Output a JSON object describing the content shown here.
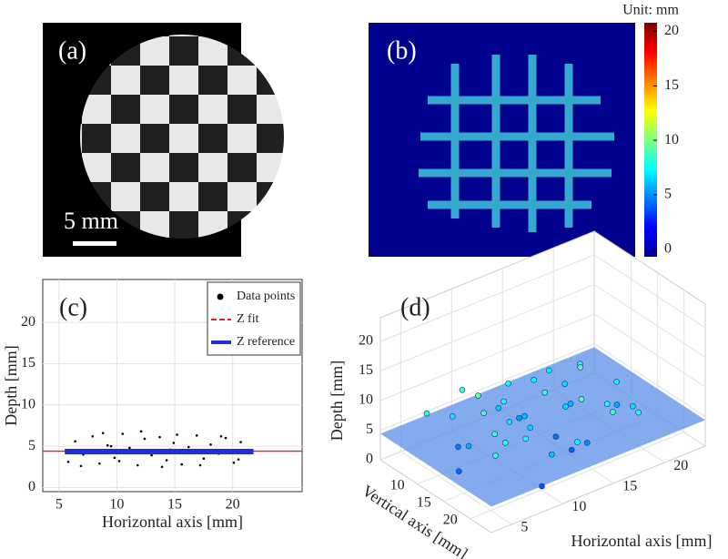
{
  "chart_data": [
    {
      "type": "image",
      "panel_label": "(a)",
      "scale_label": "5 mm"
    },
    {
      "type": "heatmap",
      "panel_label": "(b)",
      "colorbar_title": "Unit: mm",
      "colormap": "jet",
      "clim": [
        -0.7,
        20.8
      ],
      "cticks": [
        0,
        5,
        10,
        15,
        20
      ]
    },
    {
      "type": "scatter",
      "panel_label": "(c)",
      "xlabel": "Horizontal axis [mm]",
      "ylabel": "Depth [mm]",
      "xlim": [
        3.6,
        26
      ],
      "ylim": [
        -0.5,
        25.2
      ],
      "xticks": [
        5,
        10,
        15,
        20
      ],
      "yticks": [
        0,
        5,
        10,
        15,
        20
      ],
      "grid": true,
      "legend": "top-right",
      "series": [
        {
          "name": "Data points",
          "color": "#000000",
          "kind": "points",
          "x": [
            5.8,
            6.4,
            7.1,
            7.9,
            8.5,
            9.2,
            9.8,
            10.5,
            11.1,
            11.8,
            12.4,
            13.0,
            13.7,
            14.3,
            14.9,
            15.6,
            16.2,
            16.9,
            17.5,
            18.1,
            18.8,
            19.4,
            20.1,
            20.7,
            21.3,
            6.9,
            8.8,
            10.2,
            12.1,
            13.9,
            15.2,
            17.2,
            19.0,
            20.5,
            9.5,
            14.6
          ],
          "values": [
            3.1,
            5.6,
            4.0,
            6.2,
            2.9,
            5.1,
            3.6,
            6.5,
            4.8,
            2.7,
            5.9,
            3.9,
            6.1,
            3.3,
            5.4,
            2.8,
            4.9,
            6.3,
            3.5,
            5.2,
            4.1,
            6.0,
            3.0,
            5.5,
            4.3,
            2.6,
            6.6,
            3.2,
            6.8,
            2.5,
            6.4,
            2.7,
            6.2,
            3.4,
            5.0,
            4.6
          ]
        },
        {
          "name": "Z fit",
          "color": "#e0202a",
          "kind": "dashed",
          "x": [
            3.6,
            26
          ],
          "values": [
            4.4,
            4.4
          ]
        },
        {
          "name": "Z reference",
          "color": "#1f2fd8",
          "kind": "thick",
          "x": [
            5.5,
            21.8
          ],
          "values": [
            4.35,
            4.35
          ]
        }
      ]
    },
    {
      "type": "scatter3d",
      "panel_label": "(d)",
      "xlabel": "Horizontal axis [mm]",
      "ylabel": "Vertical axis [mm]",
      "zlabel": "Depth [mm]",
      "xlim": [
        3,
        24
      ],
      "ylim": [
        3,
        24
      ],
      "zlim": [
        0,
        24
      ],
      "xticks": [
        5,
        10,
        15,
        20
      ],
      "yticks": [
        10,
        15,
        20
      ],
      "zticks": [
        0,
        5,
        10,
        15,
        20
      ],
      "colormap": "jet",
      "plane_z": 4.4,
      "plane_color": "#5a8fe8",
      "x": [
        6,
        8,
        10,
        12,
        14,
        16,
        18,
        20,
        7,
        9,
        11,
        13,
        15,
        17,
        19,
        21,
        5,
        8,
        12,
        16,
        20,
        10,
        14,
        18,
        6,
        11,
        15,
        19,
        9,
        13,
        17,
        7,
        12,
        16,
        20,
        10,
        14,
        18,
        8,
        13
      ],
      "y": [
        6,
        7,
        5,
        8,
        6,
        7,
        9,
        8,
        10,
        11,
        12,
        10,
        11,
        12,
        10,
        13,
        14,
        15,
        14,
        16,
        15,
        17,
        18,
        17,
        19,
        20,
        19,
        21,
        22,
        21,
        20,
        12,
        9,
        13,
        18,
        8,
        15,
        6,
        17,
        11
      ],
      "z": [
        7.5,
        6.2,
        8.1,
        5.4,
        7.0,
        6.8,
        5.9,
        7.3,
        3.5,
        8.4,
        6.1,
        4.2,
        7.7,
        5.0,
        8.6,
        6.5,
        3.1,
        7.9,
        5.6,
        8.8,
        4.5,
        6.9,
        2.8,
        7.2,
        8.0,
        5.3,
        3.9,
        7.4,
        2.5,
        6.6,
        8.3,
        4.8,
        7.1,
        5.8,
        6.0,
        8.9,
        3.3,
        6.4,
        7.6,
        5.1
      ]
    }
  ]
}
